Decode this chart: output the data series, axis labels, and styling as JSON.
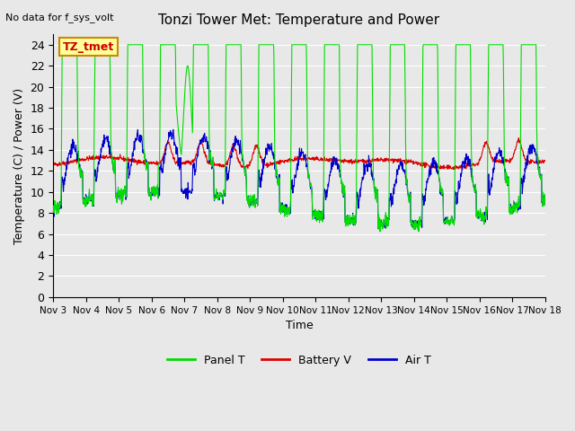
{
  "title": "Tonzi Tower Met: Temperature and Power",
  "ylabel": "Temperature (C) / Power (V)",
  "xlabel": "Time",
  "topleft_text": "No data for f_sys_volt",
  "tag_label": "TZ_tmet",
  "tag_bg": "#ffff99",
  "tag_border": "#cc8800",
  "tag_text_color": "#cc0000",
  "ylim": [
    0,
    25
  ],
  "yticks": [
    0,
    2,
    4,
    6,
    8,
    10,
    12,
    14,
    16,
    18,
    20,
    22,
    24
  ],
  "xtick_labels": [
    "Nov 3",
    "Nov 4",
    "Nov 5",
    "Nov 6",
    "Nov 7",
    "Nov 8",
    "Nov 9",
    "Nov 10",
    "Nov 11",
    "Nov 12",
    "Nov 13",
    "Nov 14",
    "Nov 15",
    "Nov 16",
    "Nov 17",
    "Nov 18"
  ],
  "bg_color": "#e8e8e8",
  "plot_bg": "#e8e8e8",
  "grid_color": "#ffffff",
  "line_green": "#00dd00",
  "line_red": "#dd0000",
  "line_blue": "#0000cc",
  "legend_items": [
    "Panel T",
    "Battery V",
    "Air T"
  ],
  "legend_colors": [
    "#00dd00",
    "#dd0000",
    "#0000cc"
  ]
}
